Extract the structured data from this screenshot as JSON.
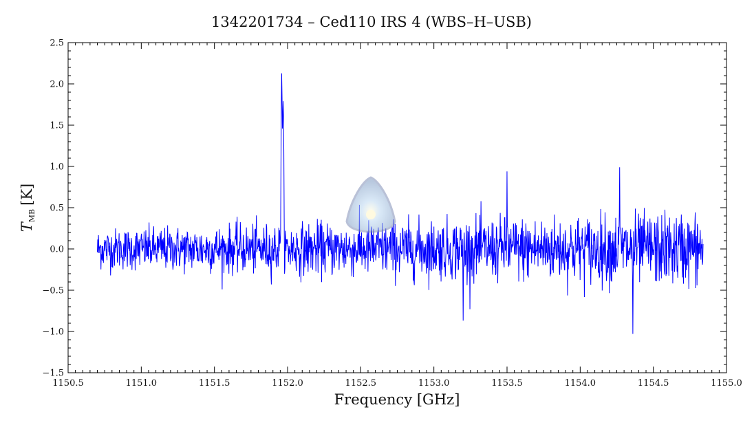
{
  "chart_data": {
    "type": "line",
    "title": "1342201734 – Ced110 IRS 4 (WBS–H–USB)",
    "xlabel": "Frequency [GHz]",
    "ylabel": {
      "main": "T",
      "subscript": "MB",
      "unit": "[K]"
    },
    "xlim": [
      1150.5,
      1155.0
    ],
    "ylim": [
      -1.5,
      2.5
    ],
    "xticks": [
      1150.5,
      1151.0,
      1151.5,
      1152.0,
      1152.5,
      1153.0,
      1153.5,
      1154.0,
      1154.5,
      1155.0
    ],
    "xtick_labels": [
      "1150.5",
      "1151.0",
      "1151.5",
      "1152.0",
      "1152.5",
      "1153.0",
      "1153.5",
      "1154.0",
      "1154.5",
      "1155.0"
    ],
    "yticks": [
      -1.5,
      -1.0,
      -0.5,
      0.0,
      0.5,
      1.0,
      1.5,
      2.0,
      2.5
    ],
    "ytick_labels": [
      "−1.5",
      "−1.0",
      "−0.5",
      "0.0",
      "0.5",
      "1.0",
      "1.5",
      "2.0",
      "2.5"
    ],
    "grid": false,
    "series": [
      {
        "color": "#0000ff",
        "x_start": 1150.7,
        "x_end": 1154.84,
        "baseline": 0.0,
        "noise_rms": {
          "start": 0.12,
          "end": 0.22
        },
        "features": [
          {
            "x": 1151.96,
            "peak": 2.15
          },
          {
            "x": 1151.97,
            "peak": 1.8
          },
          {
            "x": 1153.5,
            "peak": 0.95
          },
          {
            "x": 1154.27,
            "peak": 1.0
          },
          {
            "x": 1153.2,
            "peak": -0.87
          },
          {
            "x": 1154.36,
            "peak": -1.03
          }
        ]
      }
    ]
  }
}
